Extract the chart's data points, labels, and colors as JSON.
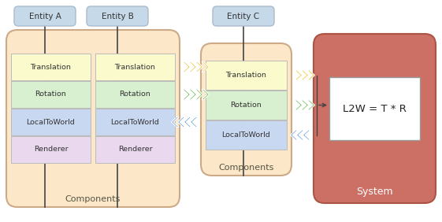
{
  "bg_color": "#ffffff",
  "entity_box_color": "#c5d9e8",
  "entity_box_edge": "#aabbcc",
  "components_bg": "#fce8c8",
  "components_edge": "#ccaa88",
  "system_bg": "#cc7066",
  "system_inner_bg": "#ffffff",
  "system_inner_edge": "#999999",
  "cell_translation": "#fafacd",
  "cell_rotation": "#d8f0d0",
  "cell_localtoworld": "#c8d8f0",
  "cell_renderer": "#ead8ee",
  "cell_border": "#bbbbbb",
  "title_color": "#333333",
  "label_color": "#555544",
  "entities": [
    "Entity A",
    "Entity B",
    "Entity C"
  ],
  "components_label": "Components",
  "system_label": "System",
  "formula": "L2W = T * R",
  "arrow_yellow": "#e8b800",
  "arrow_green": "#44aa22",
  "arrow_blue": "#4488cc",
  "line_color": "#444444"
}
